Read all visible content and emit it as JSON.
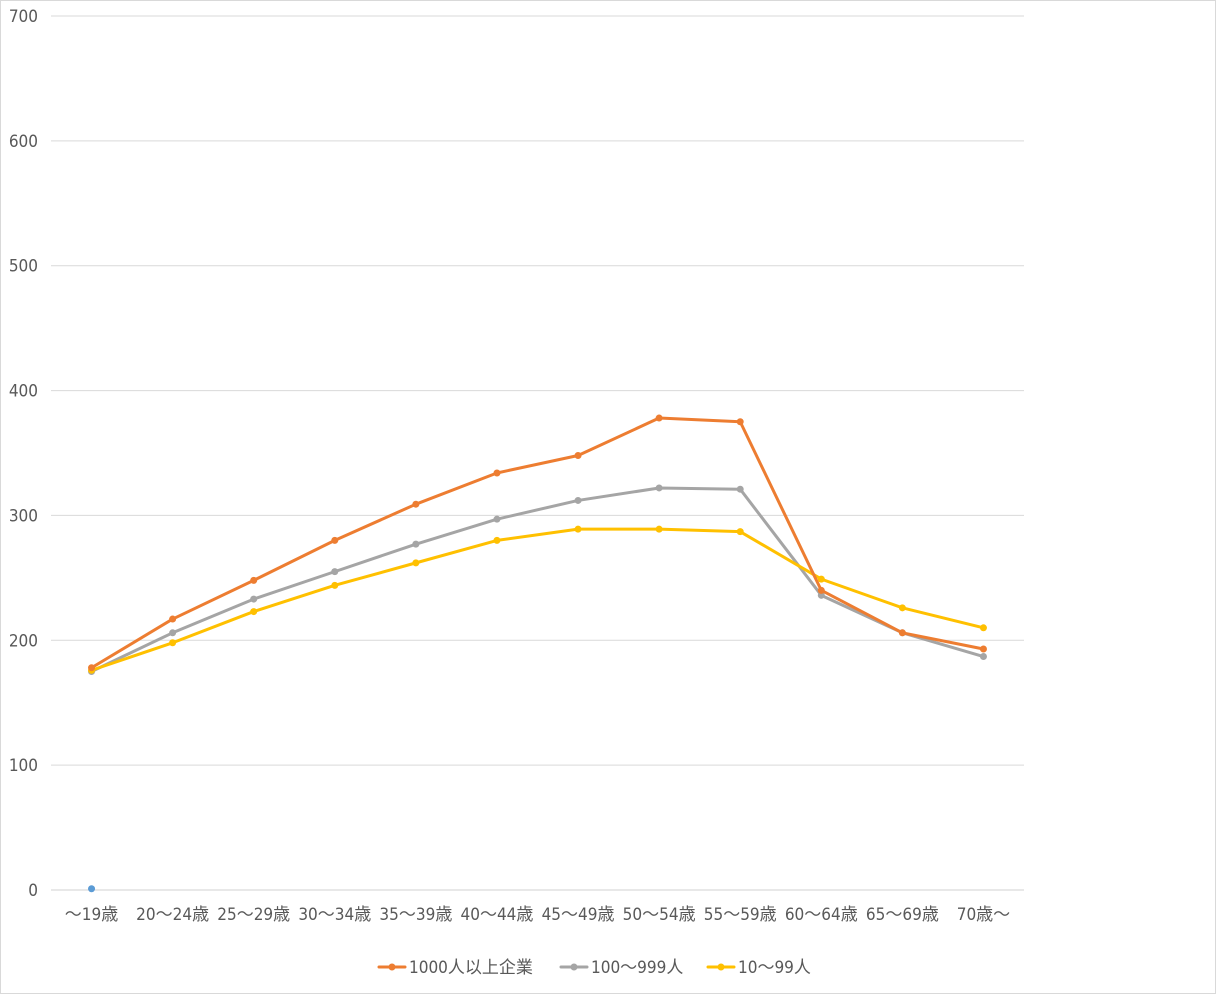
{
  "chart_data": {
    "type": "line",
    "title": "",
    "xlabel": "",
    "ylabel": "",
    "ylim": [
      0,
      700
    ],
    "y_ticks": [
      "0",
      "100",
      "200",
      "300",
      "400",
      "500",
      "600",
      "700"
    ],
    "grid": true,
    "legend_position": "bottom",
    "categories": [
      "〜19歳",
      "20〜24歳",
      "25〜29歳",
      "30〜34歳",
      "35〜39歳",
      "40〜44歳",
      "45〜49歳",
      "50〜54歳",
      "55〜59歳",
      "60〜64歳",
      "65〜69歳",
      "70歳〜"
    ],
    "series": [
      {
        "name": "1000人以上企業",
        "color": "#ED7D31",
        "values": [
          178,
          217,
          248,
          280,
          309,
          334,
          348,
          378,
          375,
          240,
          206,
          193
        ]
      },
      {
        "name": "100〜999人",
        "color": "#A5A5A5",
        "values": [
          175,
          206,
          233,
          255,
          277,
          297,
          312,
          322,
          321,
          236,
          206,
          187
        ]
      },
      {
        "name": "10〜99人",
        "color": "#FFC000",
        "values": [
          176,
          198,
          223,
          244,
          262,
          280,
          289,
          289,
          287,
          249,
          226,
          210
        ]
      }
    ],
    "stray_point": {
      "category": "〜19歳",
      "value": 1,
      "color": "#5B9BD5"
    }
  }
}
